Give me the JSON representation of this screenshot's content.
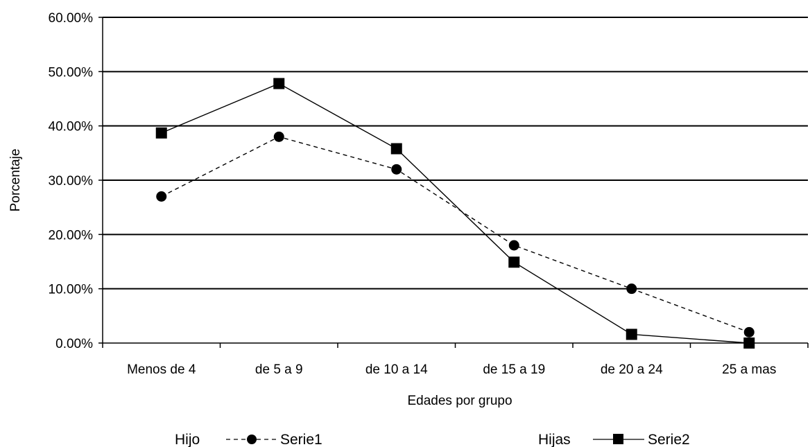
{
  "chart_data": {
    "type": "line",
    "title": "",
    "xlabel": "Edades por grupo",
    "ylabel": "Porcentaje",
    "categories": [
      "Menos de 4",
      "de 5 a 9",
      "de 10 a 14",
      "de 15 a 19",
      "de 20 a 24",
      "25 a mas"
    ],
    "ylim": [
      0,
      0.6
    ],
    "yticks": [
      0,
      0.1,
      0.2,
      0.3,
      0.4,
      0.5,
      0.6
    ],
    "ytick_labels": [
      "0.00%",
      "10.00%",
      "20.00%",
      "30.00%",
      "40.00%",
      "50.00%",
      "60.00%"
    ],
    "grid": true,
    "legend_position": "bottom",
    "series": [
      {
        "name": "Serie1",
        "values": [
          0.27,
          0.38,
          0.32,
          0.18,
          0.1,
          0.02
        ],
        "style": "dashed",
        "marker": "circle",
        "color": "#000000"
      },
      {
        "name": "Serie2",
        "values": [
          0.387,
          0.478,
          0.358,
          0.149,
          0.016,
          0.0
        ],
        "style": "solid",
        "marker": "square",
        "color": "#000000"
      }
    ],
    "legend": [
      {
        "prefix": "Hijo",
        "series": "Serie1"
      },
      {
        "prefix": "Hijas",
        "series": "Serie2"
      }
    ]
  }
}
